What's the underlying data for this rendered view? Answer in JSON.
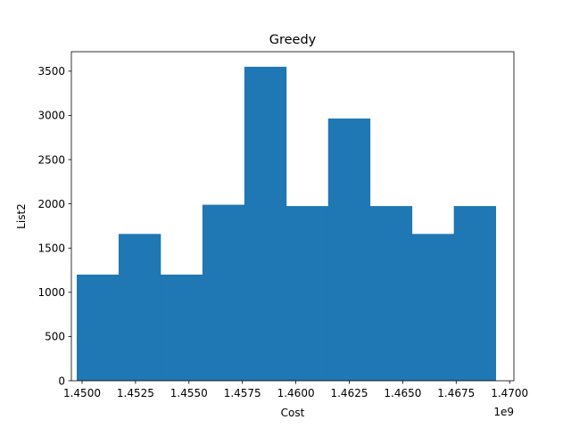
{
  "chart_data": {
    "type": "bar",
    "title": "Greedy",
    "xlabel": "Cost",
    "ylabel": "List2",
    "x_multiplier_label": "1e9",
    "bin_edges": [
      1.44975,
      1.45171,
      1.45367,
      1.45563,
      1.45759,
      1.45955,
      1.46151,
      1.46347,
      1.46543,
      1.46739,
      1.46935
    ],
    "values": [
      1200,
      1660,
      1200,
      1990,
      3550,
      1975,
      2965,
      1975,
      1660,
      1975
    ],
    "xlim": [
      1.4495,
      1.4702
    ],
    "ylim": [
      0,
      3720
    ],
    "xticks": [
      1.45,
      1.4525,
      1.455,
      1.4575,
      1.46,
      1.4625,
      1.465,
      1.4675,
      1.47
    ],
    "xtick_labels": [
      "1.4500",
      "1.4525",
      "1.4550",
      "1.4575",
      "1.4600",
      "1.4625",
      "1.4650",
      "1.4675",
      "1.4700"
    ],
    "yticks": [
      0,
      500,
      1000,
      1500,
      2000,
      2500,
      3000,
      3500
    ],
    "ytick_labels": [
      "0",
      "500",
      "1000",
      "1500",
      "2000",
      "2500",
      "3000",
      "3500"
    ],
    "bar_color": "#1f77b4",
    "grid": false,
    "legend": "none"
  }
}
